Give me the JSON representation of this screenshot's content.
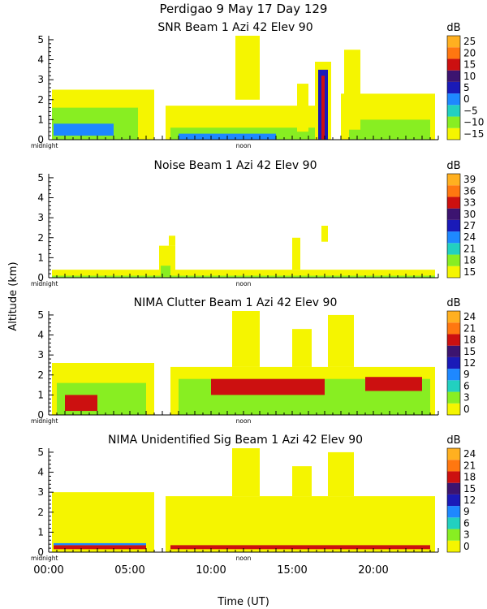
{
  "header": {
    "title": "Perdigao    9 May 17 Day 129"
  },
  "axes": {
    "ylabel": "Altitude (km)",
    "xlabel": "Time (UT)",
    "y_ticks": [
      "0",
      "1",
      "2",
      "3",
      "4",
      "5"
    ],
    "x_ticks": [
      "00:00",
      "05:00",
      "10:00",
      "15:00",
      "20:00"
    ],
    "x_ticks_hours": [
      0,
      5,
      10,
      15,
      20
    ],
    "midnight_label": "midnight",
    "noon_label": "noon"
  },
  "chart_data": [
    {
      "type": "heatmap",
      "title": "SNR Beam 1 Azi   42 Elev 90",
      "unit": "dB",
      "colorbar_labels": [
        "25",
        "20",
        "15",
        "10",
        "5",
        "0",
        "−5",
        "−10",
        "−15"
      ],
      "colorbar_range": [
        -15,
        27
      ],
      "xlim": [
        0,
        24
      ],
      "ylim": [
        0,
        5.2
      ],
      "regions": [
        {
          "t0": 0.2,
          "t1": 6.5,
          "h0": 0.0,
          "h1": 2.5,
          "value": -12
        },
        {
          "t0": 0.2,
          "t1": 5.5,
          "h0": 0.0,
          "h1": 1.6,
          "value": -7
        },
        {
          "t0": 0.3,
          "t1": 4.0,
          "h0": 0.2,
          "h1": 0.8,
          "value": 2
        },
        {
          "t0": 7.2,
          "t1": 16.8,
          "h0": 0.0,
          "h1": 1.7,
          "value": -12
        },
        {
          "t0": 7.5,
          "t1": 16.5,
          "h0": 0.0,
          "h1": 0.6,
          "value": -7
        },
        {
          "t0": 8.0,
          "t1": 14.0,
          "h0": 0.0,
          "h1": 0.3,
          "value": 2
        },
        {
          "t0": 11.5,
          "t1": 13.0,
          "h0": 2.0,
          "h1": 5.2,
          "value": -14
        },
        {
          "t0": 15.3,
          "t1": 16.0,
          "h0": 0.4,
          "h1": 2.8,
          "value": -12
        },
        {
          "t0": 16.4,
          "t1": 17.4,
          "h0": 0.0,
          "h1": 3.9,
          "value": -12
        },
        {
          "t0": 16.6,
          "t1": 17.2,
          "h0": 0.0,
          "h1": 3.5,
          "value": 5
        },
        {
          "t0": 16.8,
          "t1": 17.0,
          "h0": 0.0,
          "h1": 3.2,
          "value": 15
        },
        {
          "t0": 18.0,
          "t1": 23.8,
          "h0": 0.0,
          "h1": 2.3,
          "value": -12
        },
        {
          "t0": 18.5,
          "t1": 23.5,
          "h0": 0.0,
          "h1": 1.0,
          "value": -7
        },
        {
          "t0": 18.2,
          "t1": 19.2,
          "h0": 0.5,
          "h1": 4.5,
          "value": -14
        }
      ]
    },
    {
      "type": "heatmap",
      "title": "Noise Beam 1 Azi   42 Elev 90",
      "unit": "dB",
      "colorbar_labels": [
        "39",
        "36",
        "33",
        "30",
        "27",
        "24",
        "21",
        "18",
        "15"
      ],
      "colorbar_range": [
        15,
        41
      ],
      "xlim": [
        0,
        24
      ],
      "ylim": [
        0,
        5.2
      ],
      "regions": [
        {
          "t0": 0.2,
          "t1": 23.8,
          "h0": 0.0,
          "h1": 0.4,
          "value": 16
        },
        {
          "t0": 6.8,
          "t1": 7.8,
          "h0": 0.0,
          "h1": 1.6,
          "value": 16
        },
        {
          "t0": 7.4,
          "t1": 7.8,
          "h0": 1.6,
          "h1": 2.1,
          "value": 16
        },
        {
          "t0": 6.9,
          "t1": 7.5,
          "h0": 0.0,
          "h1": 0.6,
          "value": 19
        },
        {
          "t0": 0.2,
          "t1": 23.8,
          "h0": 0.0,
          "h1": 0.1,
          "value": 19
        },
        {
          "t0": 15.0,
          "t1": 15.5,
          "h0": 0.4,
          "h1": 2.0,
          "value": 16
        },
        {
          "t0": 16.8,
          "t1": 17.2,
          "h0": 1.8,
          "h1": 2.6,
          "value": 16
        }
      ]
    },
    {
      "type": "heatmap",
      "title": "NIMA Clutter Beam 1 Azi   42 Elev 90",
      "unit": "dB",
      "colorbar_labels": [
        "24",
        "21",
        "18",
        "15",
        "12",
        "9",
        "6",
        "3",
        "0"
      ],
      "colorbar_range": [
        0,
        26
      ],
      "xlim": [
        0,
        24
      ],
      "ylim": [
        0,
        5.2
      ],
      "regions": [
        {
          "t0": 0.2,
          "t1": 6.5,
          "h0": 0.0,
          "h1": 2.6,
          "value": 1
        },
        {
          "t0": 7.5,
          "t1": 23.8,
          "h0": 0.0,
          "h1": 2.4,
          "value": 1
        },
        {
          "t0": 11.3,
          "t1": 13.0,
          "h0": 2.4,
          "h1": 5.2,
          "value": 1
        },
        {
          "t0": 15.0,
          "t1": 16.2,
          "h0": 2.4,
          "h1": 4.3,
          "value": 1
        },
        {
          "t0": 17.2,
          "t1": 18.8,
          "h0": 2.4,
          "h1": 5.0,
          "value": 1
        },
        {
          "t0": 0.5,
          "t1": 6.0,
          "h0": 0.0,
          "h1": 1.6,
          "value": 5
        },
        {
          "t0": 1.0,
          "t1": 3.0,
          "h0": 0.2,
          "h1": 1.0,
          "value": 20
        },
        {
          "t0": 8.0,
          "t1": 23.5,
          "h0": 0.0,
          "h1": 1.8,
          "value": 5
        },
        {
          "t0": 10.0,
          "t1": 17.0,
          "h0": 1.0,
          "h1": 1.8,
          "value": 20
        },
        {
          "t0": 19.5,
          "t1": 23.0,
          "h0": 1.2,
          "h1": 1.9,
          "value": 20
        }
      ]
    },
    {
      "type": "heatmap",
      "title": "NIMA Unidentified Sig Beam 1 Azi   42 Elev 90",
      "unit": "dB",
      "colorbar_labels": [
        "24",
        "21",
        "18",
        "15",
        "12",
        "9",
        "6",
        "3",
        "0"
      ],
      "colorbar_range": [
        0,
        26
      ],
      "xlim": [
        0,
        24
      ],
      "ylim": [
        0,
        5.2
      ],
      "regions": [
        {
          "t0": 0.2,
          "t1": 6.5,
          "h0": 0.0,
          "h1": 3.0,
          "value": 1
        },
        {
          "t0": 7.2,
          "t1": 23.8,
          "h0": 0.0,
          "h1": 2.8,
          "value": 1
        },
        {
          "t0": 11.3,
          "t1": 13.0,
          "h0": 2.8,
          "h1": 5.2,
          "value": 1
        },
        {
          "t0": 15.0,
          "t1": 16.2,
          "h0": 2.8,
          "h1": 4.3,
          "value": 1
        },
        {
          "t0": 17.2,
          "t1": 18.8,
          "h0": 2.8,
          "h1": 5.0,
          "value": 1
        },
        {
          "t0": 0.3,
          "t1": 6.0,
          "h0": 0.15,
          "h1": 0.35,
          "value": 20
        },
        {
          "t0": 0.3,
          "t1": 6.0,
          "h0": 0.35,
          "h1": 0.45,
          "value": 11
        },
        {
          "t0": 7.5,
          "t1": 23.5,
          "h0": 0.15,
          "h1": 0.35,
          "value": 20
        }
      ]
    }
  ]
}
